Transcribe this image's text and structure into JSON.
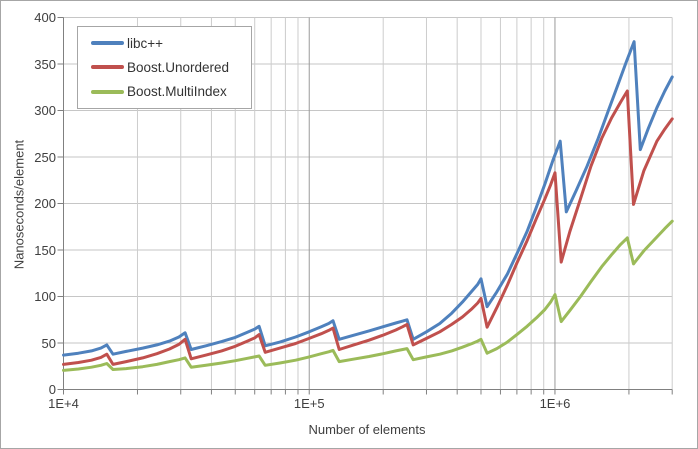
{
  "chart_data": {
    "type": "line",
    "title": "",
    "xlabel": "Number of elements",
    "ylabel": "Nanoseconds/element",
    "x_scale": "log",
    "xlim": [
      10000,
      3000000
    ],
    "ylim": [
      0,
      400
    ],
    "grid": true,
    "legend_position": "top-left",
    "y_ticks": [
      {
        "value": 0,
        "label": "0"
      },
      {
        "value": 50,
        "label": "50"
      },
      {
        "value": 100,
        "label": "100"
      },
      {
        "value": 150,
        "label": "150"
      },
      {
        "value": 200,
        "label": "200"
      },
      {
        "value": 250,
        "label": "250"
      },
      {
        "value": 300,
        "label": "300"
      },
      {
        "value": 350,
        "label": "350"
      },
      {
        "value": 400,
        "label": "400"
      }
    ],
    "x_ticks": [
      {
        "value": 10000,
        "label": "1E+4"
      },
      {
        "value": 100000,
        "label": "1E+5"
      },
      {
        "value": 1000000,
        "label": "1E+6"
      }
    ],
    "series": [
      {
        "name": "libc++",
        "color": "#4F81BD",
        "points": [
          [
            10000,
            37
          ],
          [
            11500,
            39
          ],
          [
            13000,
            41.5
          ],
          [
            14200,
            44.5
          ],
          [
            15000,
            48
          ],
          [
            15900,
            38
          ],
          [
            18000,
            41
          ],
          [
            21000,
            44.5
          ],
          [
            24000,
            48
          ],
          [
            27000,
            52
          ],
          [
            29500,
            56.5
          ],
          [
            31250,
            61
          ],
          [
            33100,
            43
          ],
          [
            38000,
            47
          ],
          [
            44000,
            51.5
          ],
          [
            50000,
            56
          ],
          [
            56000,
            61.5
          ],
          [
            60000,
            65
          ],
          [
            62500,
            68
          ],
          [
            66200,
            47
          ],
          [
            76000,
            51
          ],
          [
            88000,
            56.5
          ],
          [
            100000,
            62
          ],
          [
            112000,
            67.5
          ],
          [
            120000,
            71
          ],
          [
            125000,
            74
          ],
          [
            132400,
            54
          ],
          [
            150000,
            58
          ],
          [
            175000,
            63
          ],
          [
            200000,
            67.5
          ],
          [
            225000,
            71.5
          ],
          [
            240000,
            73.5
          ],
          [
            250000,
            75
          ],
          [
            264800,
            54
          ],
          [
            300000,
            62
          ],
          [
            340000,
            71
          ],
          [
            380000,
            82
          ],
          [
            420000,
            94
          ],
          [
            460000,
            106
          ],
          [
            485000,
            113
          ],
          [
            500000,
            119
          ],
          [
            529600,
            89
          ],
          [
            580000,
            105
          ],
          [
            640000,
            124
          ],
          [
            700000,
            146
          ],
          [
            770000,
            170
          ],
          [
            840000,
            196
          ],
          [
            910000,
            221
          ],
          [
            980000,
            246
          ],
          [
            1050000,
            267
          ],
          [
            1112000,
            191
          ],
          [
            1220000,
            214
          ],
          [
            1350000,
            240
          ],
          [
            1500000,
            270
          ],
          [
            1650000,
            300
          ],
          [
            1800000,
            327
          ],
          [
            1950000,
            352
          ],
          [
            2100000,
            374
          ],
          [
            2224000,
            258
          ],
          [
            2400000,
            281
          ],
          [
            2600000,
            303
          ],
          [
            2800000,
            321
          ],
          [
            3000000,
            336
          ]
        ]
      },
      {
        "name": "Boost.Unordered",
        "color": "#C0504D",
        "points": [
          [
            10000,
            27
          ],
          [
            11500,
            29
          ],
          [
            13000,
            31.5
          ],
          [
            14200,
            34.5
          ],
          [
            15000,
            38
          ],
          [
            15900,
            27
          ],
          [
            18000,
            30
          ],
          [
            21000,
            34
          ],
          [
            24000,
            38.5
          ],
          [
            27000,
            43.5
          ],
          [
            29500,
            48.5
          ],
          [
            31250,
            54
          ],
          [
            33100,
            33
          ],
          [
            38000,
            37
          ],
          [
            44000,
            41.5
          ],
          [
            50000,
            46.5
          ],
          [
            56000,
            52
          ],
          [
            60000,
            55.5
          ],
          [
            62500,
            59
          ],
          [
            66200,
            40
          ],
          [
            76000,
            44.5
          ],
          [
            88000,
            49.5
          ],
          [
            100000,
            55
          ],
          [
            112000,
            60
          ],
          [
            120000,
            63.5
          ],
          [
            125000,
            66
          ],
          [
            132400,
            43
          ],
          [
            150000,
            47.5
          ],
          [
            175000,
            53
          ],
          [
            200000,
            58.5
          ],
          [
            225000,
            64
          ],
          [
            240000,
            67.5
          ],
          [
            250000,
            70
          ],
          [
            264800,
            48
          ],
          [
            300000,
            55
          ],
          [
            340000,
            62
          ],
          [
            380000,
            70
          ],
          [
            420000,
            78
          ],
          [
            460000,
            87
          ],
          [
            485000,
            93
          ],
          [
            500000,
            98
          ],
          [
            529600,
            67
          ],
          [
            580000,
            88
          ],
          [
            640000,
            112
          ],
          [
            700000,
            136
          ],
          [
            770000,
            160
          ],
          [
            840000,
            184
          ],
          [
            910000,
            205
          ],
          [
            960000,
            220
          ],
          [
            1000000,
            233
          ],
          [
            1060000,
            137
          ],
          [
            1150000,
            170
          ],
          [
            1270000,
            205
          ],
          [
            1400000,
            240
          ],
          [
            1550000,
            270
          ],
          [
            1700000,
            292
          ],
          [
            1850000,
            309
          ],
          [
            1970000,
            321
          ],
          [
            2087000,
            199
          ],
          [
            2300000,
            235
          ],
          [
            2600000,
            267
          ],
          [
            2800000,
            280
          ],
          [
            3000000,
            291
          ]
        ]
      },
      {
        "name": "Boost.MultiIndex",
        "color": "#9BBB59",
        "points": [
          [
            10000,
            20.5
          ],
          [
            11500,
            22
          ],
          [
            13000,
            24
          ],
          [
            14200,
            26
          ],
          [
            15000,
            28
          ],
          [
            15900,
            21.5
          ],
          [
            18000,
            22.5
          ],
          [
            21000,
            24.5
          ],
          [
            24000,
            27
          ],
          [
            27000,
            30
          ],
          [
            29500,
            32
          ],
          [
            31250,
            34
          ],
          [
            33100,
            24
          ],
          [
            38000,
            26
          ],
          [
            44000,
            28.5
          ],
          [
            50000,
            31
          ],
          [
            56000,
            33.5
          ],
          [
            60000,
            35
          ],
          [
            62500,
            36
          ],
          [
            66200,
            26
          ],
          [
            76000,
            28.5
          ],
          [
            88000,
            31.5
          ],
          [
            100000,
            35
          ],
          [
            112000,
            38.5
          ],
          [
            120000,
            40.5
          ],
          [
            125000,
            42
          ],
          [
            132400,
            30
          ],
          [
            150000,
            32.5
          ],
          [
            175000,
            35.5
          ],
          [
            200000,
            38.5
          ],
          [
            225000,
            41.5
          ],
          [
            240000,
            43
          ],
          [
            250000,
            44
          ],
          [
            264800,
            32
          ],
          [
            300000,
            35
          ],
          [
            340000,
            38
          ],
          [
            380000,
            41.5
          ],
          [
            420000,
            45.5
          ],
          [
            460000,
            49.5
          ],
          [
            485000,
            52
          ],
          [
            500000,
            54
          ],
          [
            529600,
            39
          ],
          [
            580000,
            44
          ],
          [
            640000,
            51
          ],
          [
            700000,
            59
          ],
          [
            770000,
            68
          ],
          [
            840000,
            77
          ],
          [
            910000,
            86
          ],
          [
            960000,
            94
          ],
          [
            1000000,
            102
          ],
          [
            1060000,
            73
          ],
          [
            1150000,
            85
          ],
          [
            1270000,
            100
          ],
          [
            1400000,
            116
          ],
          [
            1550000,
            132
          ],
          [
            1700000,
            145
          ],
          [
            1850000,
            156
          ],
          [
            1970000,
            163
          ],
          [
            2087000,
            135
          ],
          [
            2300000,
            149
          ],
          [
            2600000,
            164
          ],
          [
            2800000,
            173
          ],
          [
            3000000,
            181
          ]
        ]
      }
    ],
    "colors": {
      "axis_line": "#808080",
      "grid_minor": "#cccccc",
      "grid_major": "#9a9a9a",
      "grid_horizontal": "#c6c6c6",
      "text": "#404040"
    }
  }
}
